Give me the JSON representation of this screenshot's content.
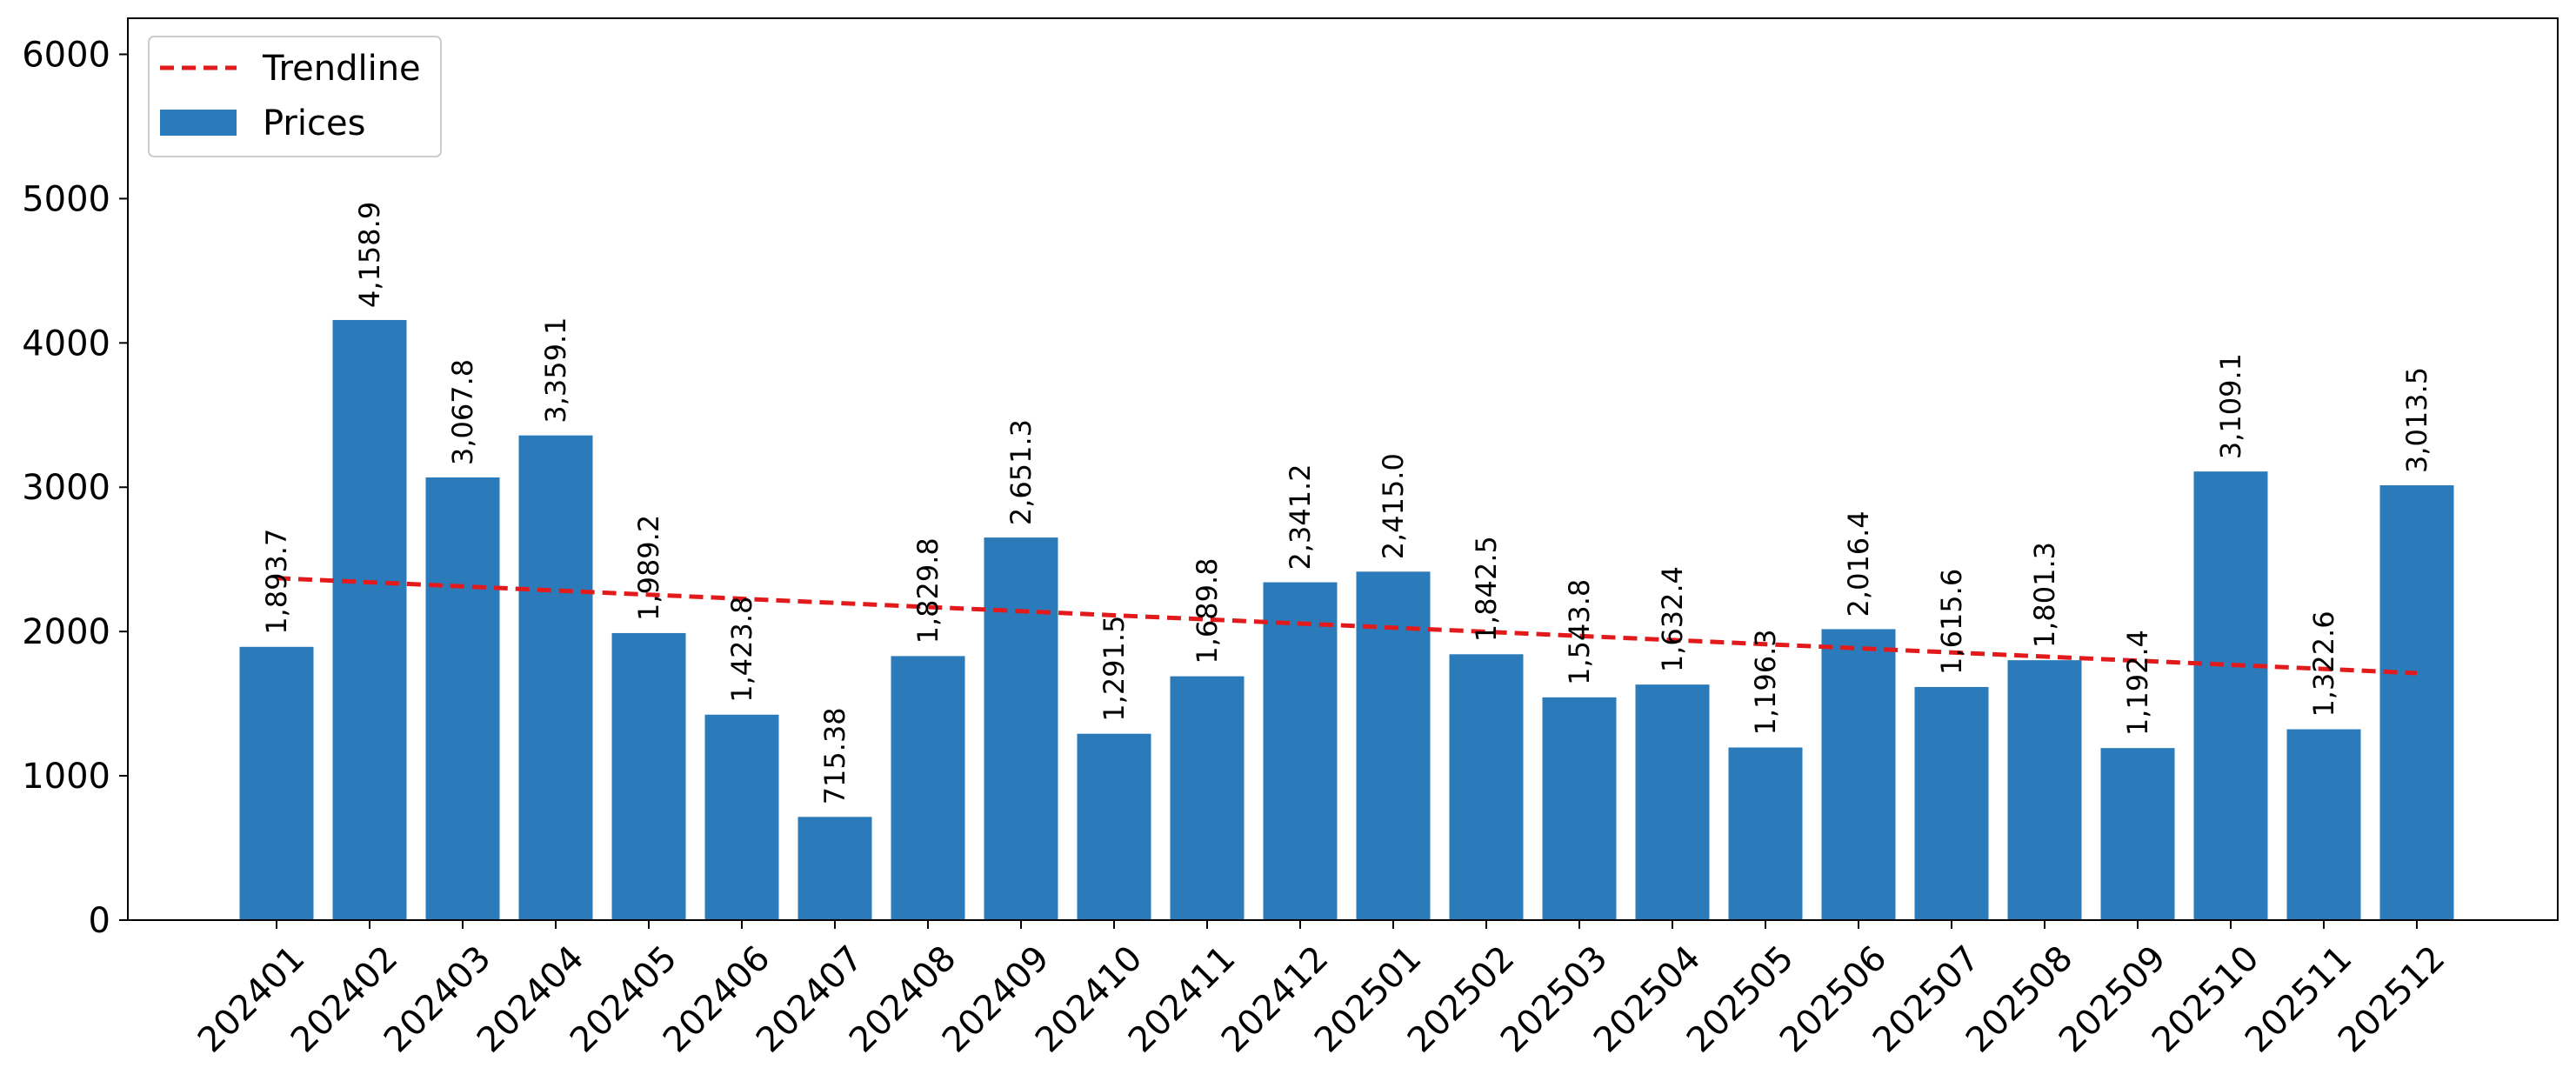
{
  "chart_data": {
    "type": "bar",
    "categories": [
      "202401",
      "202402",
      "202403",
      "202404",
      "202405",
      "202406",
      "202407",
      "202408",
      "202409",
      "202410",
      "202411",
      "202412",
      "202501",
      "202502",
      "202503",
      "202504",
      "202505",
      "202506",
      "202507",
      "202508",
      "202509",
      "202510",
      "202511",
      "202512"
    ],
    "series": [
      {
        "name": "Prices",
        "values": [
          1893.7,
          4158.9,
          3067.8,
          3359.1,
          1989.2,
          1423.8,
          715.38,
          1829.8,
          2651.3,
          1291.5,
          1689.8,
          2341.2,
          2415.0,
          1842.5,
          1543.8,
          1632.4,
          1196.3,
          2016.4,
          1615.6,
          1801.3,
          1192.4,
          3109.1,
          1322.6,
          3013.5
        ],
        "labels": [
          "1,893.7",
          "4,158.9",
          "3,067.8",
          "3,359.1",
          "1,989.2",
          "1,423.8",
          "715.38",
          "1,829.8",
          "2,651.3",
          "1,291.5",
          "1,689.8",
          "2,341.2",
          "2,415.0",
          "1,842.5",
          "1,543.8",
          "1,632.4",
          "1,196.3",
          "2,016.4",
          "1,615.6",
          "1,801.3",
          "1,192.4",
          "3,109.1",
          "1,322.6",
          "3,013.5"
        ],
        "color": "#2b7bba"
      },
      {
        "name": "Trendline",
        "type": "line",
        "style": "dashed",
        "start": 2370,
        "end": 1712,
        "color": "#e31a1c"
      }
    ],
    "title": "",
    "xlabel": "",
    "ylabel": "",
    "ylim": [
      0,
      6250
    ],
    "yticks": [
      0,
      1000,
      2000,
      3000,
      4000,
      5000,
      6000
    ],
    "grid": false,
    "legend": "top-left"
  }
}
